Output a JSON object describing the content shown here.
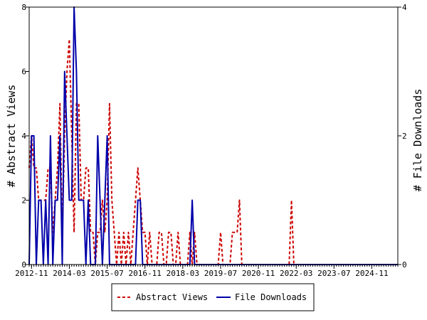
{
  "chart_data": {
    "type": "line",
    "title": "",
    "xlabel": "",
    "ylabel_left": "# Abstract Views",
    "ylabel_right": "# File Downloads",
    "x_ticks": [
      "2012-11",
      "2014-03",
      "2015-07",
      "2016-11",
      "2018-03",
      "2019-07",
      "2020-11",
      "2022-03",
      "2023-07",
      "2024-11"
    ],
    "x_range": [
      "2012-10",
      "2025-10"
    ],
    "ylim_left": [
      0,
      8
    ],
    "ylim_right": [
      0,
      4
    ],
    "yticks_left": [
      0,
      2,
      4,
      6,
      8
    ],
    "yticks_right": [
      0,
      2,
      4
    ],
    "legend_position": "bottom-center",
    "grid": false,
    "series": [
      {
        "name": "Abstract Views",
        "axis": "left",
        "color": "#cc0000",
        "style": "dashed",
        "points": [
          [
            "2012-10",
            3
          ],
          [
            "2012-11",
            4
          ],
          [
            "2012-12",
            3
          ],
          [
            "2013-01",
            3
          ],
          [
            "2013-02",
            2
          ],
          [
            "2013-03",
            2
          ],
          [
            "2013-04",
            2
          ],
          [
            "2013-05",
            2
          ],
          [
            "2013-06",
            3
          ],
          [
            "2013-07",
            3
          ],
          [
            "2013-08",
            1
          ],
          [
            "2013-09",
            2
          ],
          [
            "2013-10",
            3
          ],
          [
            "2013-11",
            5
          ],
          [
            "2013-12",
            1
          ],
          [
            "2014-01",
            4
          ],
          [
            "2014-02",
            6
          ],
          [
            "2014-03",
            7
          ],
          [
            "2014-04",
            4
          ],
          [
            "2014-05",
            1
          ],
          [
            "2014-06",
            5
          ],
          [
            "2014-07",
            5
          ],
          [
            "2014-08",
            2
          ],
          [
            "2014-09",
            2
          ],
          [
            "2014-10",
            3
          ],
          [
            "2014-11",
            3
          ],
          [
            "2014-12",
            1
          ],
          [
            "2015-01",
            1
          ],
          [
            "2015-02",
            0
          ],
          [
            "2015-03",
            1
          ],
          [
            "2015-04",
            1
          ],
          [
            "2015-05",
            2
          ],
          [
            "2015-06",
            1
          ],
          [
            "2015-07",
            2
          ],
          [
            "2015-08",
            5
          ],
          [
            "2015-09",
            2
          ],
          [
            "2015-10",
            1
          ],
          [
            "2015-11",
            0
          ],
          [
            "2015-12",
            1
          ],
          [
            "2016-01",
            0
          ],
          [
            "2016-02",
            1
          ],
          [
            "2016-03",
            0
          ],
          [
            "2016-04",
            1
          ],
          [
            "2016-05",
            0
          ],
          [
            "2016-06",
            1
          ],
          [
            "2016-07",
            2
          ],
          [
            "2016-08",
            3
          ],
          [
            "2016-09",
            2
          ],
          [
            "2016-10",
            1
          ],
          [
            "2016-11",
            1
          ],
          [
            "2016-12",
            0
          ],
          [
            "2017-01",
            1
          ],
          [
            "2017-02",
            0
          ],
          [
            "2017-03",
            0
          ],
          [
            "2017-04",
            0
          ],
          [
            "2017-05",
            1
          ],
          [
            "2017-06",
            1
          ],
          [
            "2017-07",
            0
          ],
          [
            "2017-08",
            0
          ],
          [
            "2017-09",
            1
          ],
          [
            "2017-10",
            1
          ],
          [
            "2017-11",
            0
          ],
          [
            "2017-12",
            0
          ],
          [
            "2018-01",
            1
          ],
          [
            "2018-02",
            0
          ],
          [
            "2018-03",
            0
          ],
          [
            "2018-04",
            0
          ],
          [
            "2018-05",
            0
          ],
          [
            "2018-06",
            1
          ],
          [
            "2018-07",
            0
          ],
          [
            "2018-08",
            1
          ],
          [
            "2018-09",
            0
          ],
          [
            "2018-10",
            0
          ],
          [
            "2018-11",
            0
          ],
          [
            "2018-12",
            0
          ],
          [
            "2019-01",
            0
          ],
          [
            "2019-02",
            0
          ],
          [
            "2019-03",
            0
          ],
          [
            "2019-04",
            0
          ],
          [
            "2019-05",
            0
          ],
          [
            "2019-06",
            0
          ],
          [
            "2019-07",
            1
          ],
          [
            "2019-08",
            0
          ],
          [
            "2019-09",
            0
          ],
          [
            "2019-10",
            0
          ],
          [
            "2019-11",
            0
          ],
          [
            "2019-12",
            1
          ],
          [
            "2020-01",
            1
          ],
          [
            "2020-02",
            1
          ],
          [
            "2020-03",
            2
          ],
          [
            "2020-04",
            0
          ],
          [
            "2020-05",
            0
          ],
          [
            "2021-12",
            0
          ],
          [
            "2022-01",
            2
          ],
          [
            "2022-02",
            0
          ],
          [
            "2022-03",
            0
          ],
          [
            "2025-10",
            0
          ]
        ]
      },
      {
        "name": "File Downloads",
        "axis": "right",
        "color": "#0000aa",
        "style": "solid",
        "points": [
          [
            "2012-10",
            0
          ],
          [
            "2012-11",
            2
          ],
          [
            "2012-12",
            2
          ],
          [
            "2013-01",
            0
          ],
          [
            "2013-02",
            1
          ],
          [
            "2013-03",
            1
          ],
          [
            "2013-04",
            0
          ],
          [
            "2013-05",
            1
          ],
          [
            "2013-06",
            0
          ],
          [
            "2013-07",
            2
          ],
          [
            "2013-08",
            0
          ],
          [
            "2013-09",
            1
          ],
          [
            "2013-10",
            1
          ],
          [
            "2013-11",
            2
          ],
          [
            "2013-12",
            0
          ],
          [
            "2014-01",
            3
          ],
          [
            "2014-02",
            2
          ],
          [
            "2014-03",
            1
          ],
          [
            "2014-04",
            1
          ],
          [
            "2014-05",
            4
          ],
          [
            "2014-06",
            3
          ],
          [
            "2014-07",
            1
          ],
          [
            "2014-08",
            1
          ],
          [
            "2014-09",
            1
          ],
          [
            "2014-10",
            0
          ],
          [
            "2014-11",
            1
          ],
          [
            "2014-12",
            0
          ],
          [
            "2015-01",
            0
          ],
          [
            "2015-02",
            0
          ],
          [
            "2015-03",
            2
          ],
          [
            "2015-04",
            1
          ],
          [
            "2015-05",
            0
          ],
          [
            "2015-06",
            1
          ],
          [
            "2015-07",
            2
          ],
          [
            "2015-08",
            0
          ],
          [
            "2015-09",
            0
          ],
          [
            "2015-10",
            0
          ],
          [
            "2015-11",
            0
          ],
          [
            "2015-12",
            0
          ],
          [
            "2016-01",
            0
          ],
          [
            "2016-02",
            0
          ],
          [
            "2016-03",
            0
          ],
          [
            "2016-04",
            0
          ],
          [
            "2016-05",
            0
          ],
          [
            "2016-06",
            0
          ],
          [
            "2016-07",
            0
          ],
          [
            "2016-08",
            1
          ],
          [
            "2016-09",
            1
          ],
          [
            "2016-10",
            0
          ],
          [
            "2016-11",
            0
          ],
          [
            "2016-12",
            0
          ],
          [
            "2017-01",
            0
          ],
          [
            "2018-05",
            0
          ],
          [
            "2018-06",
            0
          ],
          [
            "2018-07",
            1
          ],
          [
            "2018-08",
            0
          ],
          [
            "2018-09",
            0
          ],
          [
            "2025-10",
            0
          ]
        ]
      }
    ]
  }
}
